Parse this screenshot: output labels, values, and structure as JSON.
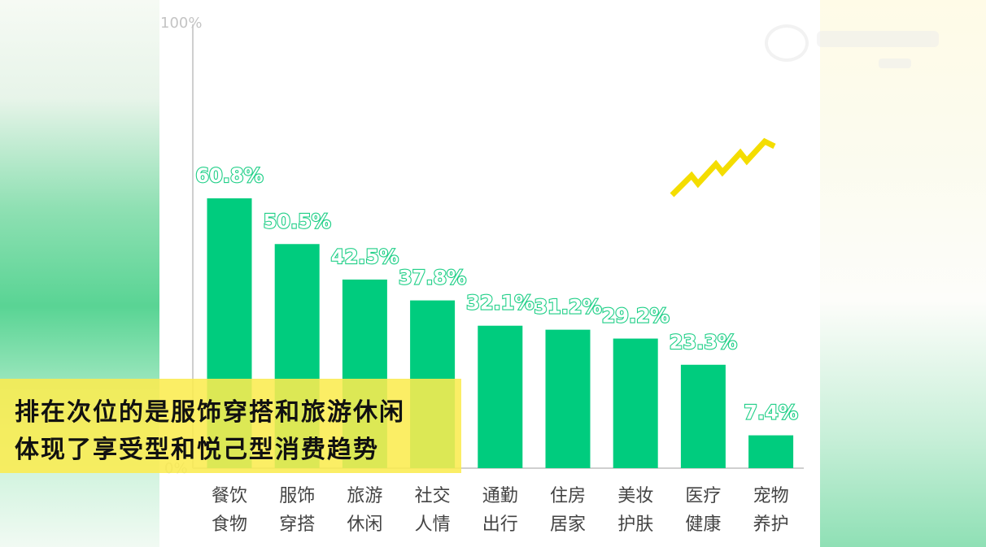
{
  "caption": {
    "line1": "排在次位的是服饰穿搭和旅游休闲",
    "line2": "体现了享受型和悦己型消费趋势"
  },
  "colors": {
    "bar": "#00cc7e",
    "label_outline": "#1fcf87",
    "caption_bg": "#faec50",
    "zigzag": "#f4dd00"
  },
  "chart_data": {
    "type": "bar",
    "categories": [
      [
        "餐饮",
        "食物"
      ],
      [
        "服饰",
        "穿搭"
      ],
      [
        "旅游",
        "休闲"
      ],
      [
        "社交",
        "人情"
      ],
      [
        "通勤",
        "出行"
      ],
      [
        "住房",
        "居家"
      ],
      [
        "美妆",
        "护肤"
      ],
      [
        "医疗",
        "健康"
      ],
      [
        "宠物",
        "养护"
      ]
    ],
    "values": [
      60.8,
      50.5,
      42.5,
      37.8,
      32.1,
      31.2,
      29.2,
      23.3,
      7.4
    ],
    "data_labels": [
      "60.8%",
      "50.5%",
      "42.5%",
      "37.8%",
      "32.1%",
      "31.2%",
      "29.2%",
      "23.3%",
      "7.4%"
    ],
    "ylim": [
      0,
      100
    ],
    "y_tick_labels": [
      "100%",
      "0%"
    ],
    "grid": false
  }
}
